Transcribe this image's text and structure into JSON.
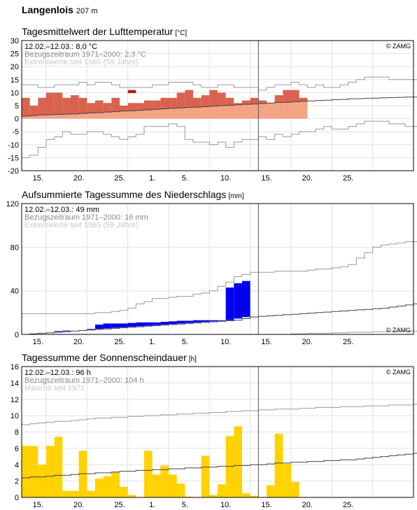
{
  "station": {
    "name": "Langenlois",
    "altitude": "207 m"
  },
  "x_axis": {
    "tick_labels": [
      "15.",
      "20.",
      "25.",
      "1.",
      "5.",
      "10.",
      "15.",
      "20.",
      "25."
    ]
  },
  "panels": [
    {
      "title": "Tagesmittelwert der Lufttemperatur",
      "unit": "[°C]",
      "info_line1": "12.02.–12.03.: 8,0 °C",
      "info_line2": "Bezugszeitraum 1971–2000: 2,3 °C",
      "info_line3": "Extremwerte seit 1965 (59 Jahre)",
      "copyright": "© ZAMG"
    },
    {
      "title": "Aufsummierte Tagessumme des Niederschlags",
      "unit": "[mm]",
      "info_line1": "12.02.–12.03.: 49 mm",
      "info_line2": "Bezugszeitraum 1971–2000: 16 mm",
      "info_line3": "Extremwerte seit 1965 (59 Jahre)",
      "copyright": "© ZAMG"
    },
    {
      "title": "Tagessumme der Sonnenscheindauer",
      "unit": "[h]",
      "info_line1": "12.02.–12.03.: 96 h",
      "info_line2": "Bezugszeitraum 1971–2000: 104 h",
      "info_line3": "Maxima seit 1971",
      "copyright": "© ZAMG"
    }
  ],
  "colors": {
    "temp_above_mean": "#d9634f",
    "temp_record": "#b02020",
    "temp_below_mean": "#f4a383",
    "precip_accum": "#0000ee",
    "precip_ref_fill": "#d6f0d6",
    "sunshine": "#ffd200",
    "extreme_line": "#9a9a9a",
    "mean_line": "#444444",
    "grid": "#e2e2e2"
  },
  "chart_data": [
    {
      "type": "bar",
      "title": "Tagesmittelwert der Lufttemperatur",
      "ylabel": "°C",
      "ylim": [
        -20,
        30
      ],
      "yticks": [
        -20,
        -15,
        -10,
        -5,
        0,
        5,
        10,
        15,
        20,
        25,
        30
      ],
      "x_days": [
        -2,
        46
      ],
      "x_day_of_tick_labels": [
        1,
        6,
        11,
        15,
        19,
        24,
        29,
        34,
        39
      ],
      "today_line_day": 28,
      "grid": true,
      "daily_mean": [
        8,
        5,
        8,
        10,
        10,
        8,
        9,
        8,
        6,
        7,
        6,
        8,
        5,
        6,
        6,
        7,
        7,
        8,
        8,
        10,
        11,
        8,
        9,
        11,
        10,
        8,
        6,
        7,
        8,
        7,
        6,
        9,
        11,
        11,
        8
      ],
      "record_days": [
        13
      ],
      "record_values": [
        11
      ],
      "climate_mean": [
        1,
        1.2,
        1.4,
        1.5,
        1.6,
        1.7,
        1.8,
        2,
        2.2,
        2.3,
        2.5,
        2.7,
        2.9,
        3,
        3.2,
        3.4,
        3.6,
        3.8,
        4,
        4.1,
        4.3,
        4.4,
        4.6,
        4.8,
        5,
        5.1,
        5.3,
        5.5,
        5.6,
        5.8,
        6,
        6.2,
        6.3,
        6.5,
        6.7,
        6.8,
        7,
        7.1,
        7.3,
        7.4,
        7.6,
        7.7,
        7.8,
        7.9,
        8,
        8.1,
        8.2,
        8.3,
        8.3
      ],
      "max_extreme": [
        13,
        13,
        12,
        12,
        13,
        13,
        13,
        14,
        13,
        14,
        14,
        13,
        12,
        12,
        12,
        12,
        13,
        13,
        14,
        14,
        14,
        13,
        12,
        12,
        13,
        13,
        12,
        12,
        12,
        11,
        12,
        13,
        13,
        14,
        13,
        12,
        13,
        12,
        12,
        13,
        14,
        15,
        16,
        16,
        16,
        15,
        15,
        15,
        15
      ],
      "min_extreme": [
        -15,
        -14,
        -11,
        -8,
        -7,
        -5,
        -6,
        -6,
        -5,
        -5,
        -6,
        -7,
        -8,
        -7,
        -6,
        -3,
        -3,
        -3,
        -2,
        -3,
        -8,
        -9,
        -9,
        -10,
        -9,
        -11,
        -9,
        -8,
        -8,
        -7,
        -8,
        -6,
        -7,
        -6,
        -5,
        -5,
        -4,
        -3,
        -4,
        -4,
        -3,
        -2,
        -1,
        -1,
        -1,
        -2,
        -2,
        -3,
        -3
      ]
    },
    {
      "type": "area",
      "title": "Aufsummierte Tagessumme des Niederschlags",
      "ylabel": "mm",
      "ylim": [
        0,
        120
      ],
      "yticks": [
        0,
        40,
        80,
        120
      ],
      "x_days": [
        -2,
        46
      ],
      "today_line_day": 28,
      "grid": true,
      "cumulative": [
        0,
        0,
        0.5,
        1,
        1.5,
        3,
        3.5,
        3.5,
        4,
        5,
        9,
        10,
        10,
        10,
        10.5,
        11,
        11,
        11,
        11.5,
        12,
        12.5,
        12.5,
        13,
        13,
        13,
        13,
        43,
        47,
        49
      ],
      "climate_mean": [
        0,
        0.5,
        1,
        1.5,
        2,
        2.5,
        3,
        3.5,
        4,
        4.5,
        5,
        5.5,
        6,
        6.5,
        7,
        7.5,
        8,
        8.5,
        9,
        9.5,
        10,
        10.5,
        11,
        11.5,
        12,
        12.5,
        13,
        14.5,
        16,
        16.5,
        17,
        17.5,
        18,
        18.5,
        19,
        19.5,
        20,
        20.5,
        21,
        21.5,
        22,
        22.5,
        23,
        23.5,
        24,
        25,
        26,
        27,
        28
      ],
      "max_extreme": [
        19,
        19,
        19,
        19,
        19,
        19,
        19,
        19,
        19,
        20,
        20,
        21,
        22,
        24,
        28,
        30,
        33,
        33,
        34,
        35,
        35,
        37,
        38,
        40,
        44,
        48,
        53,
        55,
        57,
        57,
        57,
        58,
        58,
        58,
        58,
        59,
        60,
        60,
        61,
        62,
        64,
        70,
        75,
        80,
        82,
        83,
        84,
        85,
        85
      ],
      "min_extreme": [
        0,
        0,
        0,
        0,
        0,
        0,
        0,
        0,
        0,
        0,
        0,
        0,
        0,
        0,
        0,
        0,
        0,
        0,
        0,
        0,
        0,
        0,
        0,
        0,
        0,
        0,
        0,
        0,
        0,
        0,
        0,
        0,
        0,
        0.5,
        0.5,
        1,
        1,
        1,
        1.5,
        1.5,
        2,
        2,
        2,
        2.5,
        2.5,
        3,
        3,
        3,
        3
      ]
    },
    {
      "type": "bar",
      "title": "Tagessumme der Sonnenscheindauer",
      "ylabel": "h",
      "ylim": [
        0,
        16
      ],
      "yticks": [
        0,
        2,
        4,
        6,
        8,
        10,
        12,
        14,
        16
      ],
      "x_days": [
        -2,
        46
      ],
      "today_line_day": 28,
      "grid": true,
      "daily_values": [
        6.3,
        6.3,
        4,
        6.3,
        7.4,
        0.8,
        0.8,
        5.7,
        0.8,
        2.3,
        2.6,
        3.1,
        1.3,
        0.3,
        0,
        5.7,
        2.8,
        3.9,
        2.8,
        1.7,
        0.1,
        0,
        5.1,
        0.3,
        1.6,
        7.5,
        8.7,
        0.5,
        0.2,
        0,
        1.5,
        7.8,
        4.1,
        1.9
      ],
      "climate_mean": [
        2.4,
        2.5,
        2.5,
        2.6,
        2.7,
        2.7,
        2.8,
        2.9,
        2.9,
        3,
        3,
        3.1,
        3.2,
        3.2,
        3.3,
        3.3,
        3.4,
        3.4,
        3.5,
        3.5,
        3.6,
        3.6,
        3.7,
        3.7,
        3.8,
        3.8,
        3.9,
        3.9,
        4,
        4,
        4.1,
        4.2,
        4.2,
        4.3,
        4.3,
        4.4,
        4.4,
        4.5,
        4.5,
        4.6,
        4.6,
        4.7,
        4.8,
        4.9,
        5,
        5.1,
        5.2,
        5.3,
        5.4
      ],
      "max_extreme": [
        8.9,
        9,
        9.1,
        9.2,
        9.3,
        9.3,
        9.4,
        9.5,
        9.6,
        9.7,
        9.7,
        9.8,
        9.8,
        9.9,
        9.9,
        10,
        10,
        10.1,
        10.1,
        10.2,
        10.2,
        10.3,
        10.3,
        10.4,
        10.4,
        10.5,
        10.5,
        10.6,
        10.6,
        10.7,
        10.7,
        10.8,
        10.8,
        10.8,
        10.9,
        10.9,
        11,
        11,
        11,
        11.1,
        11.1,
        11.1,
        11.2,
        11.2,
        11.2,
        11.3,
        11.3,
        11.3,
        11.4
      ]
    }
  ]
}
